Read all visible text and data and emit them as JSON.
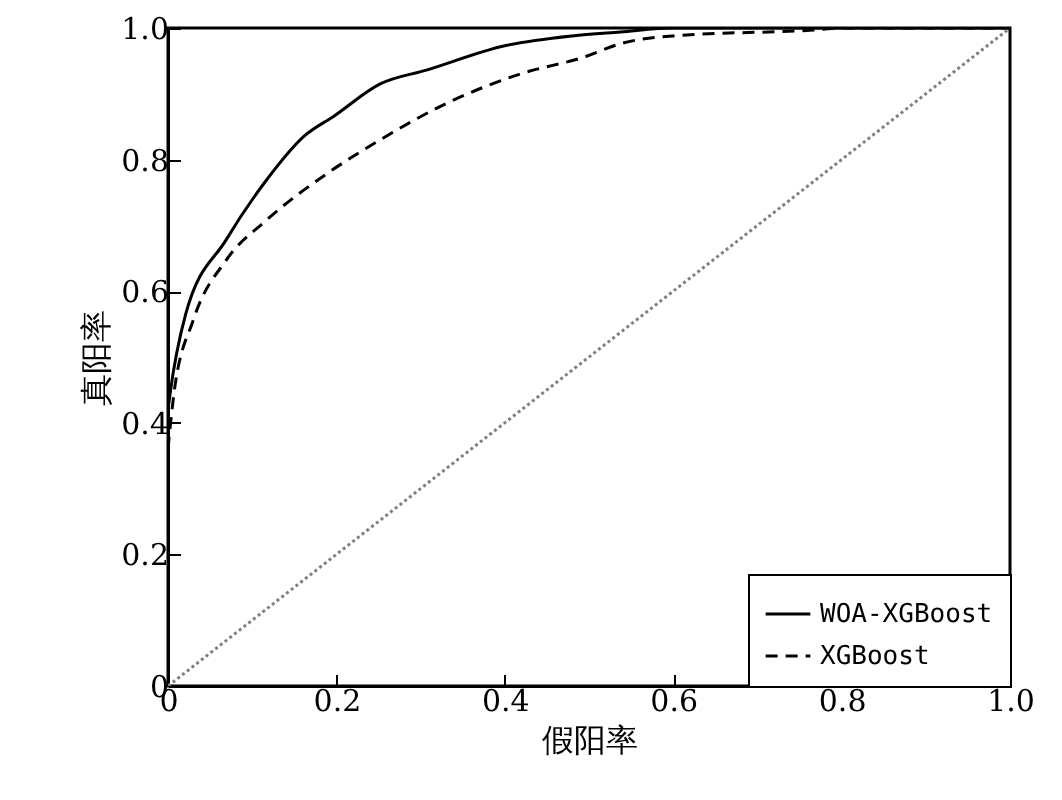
{
  "chart_data": {
    "type": "line",
    "xlabel": "假阳率",
    "ylabel": "真阳率",
    "xlim": [
      0,
      1
    ],
    "ylim": [
      0,
      1
    ],
    "xticks": [
      0,
      0.2,
      0.4,
      0.6,
      0.8,
      {
        "value": 1,
        "label": "1.0"
      }
    ],
    "yticks": [
      0,
      0.2,
      0.4,
      0.6,
      0.8,
      {
        "value": 1,
        "label": "1.0"
      }
    ],
    "legend": "bottom right",
    "series": [
      {
        "name": "WOA-XGBoost",
        "color": "#000000",
        "line_style": "solid",
        "x": [
          0,
          0.002,
          0.021,
          0.069,
          0.117,
          0.162,
          0.197,
          0.252,
          0.307,
          0.4,
          0.48,
          0.537,
          0.6,
          1
        ],
        "values": [
          0.42,
          0.44,
          0.565,
          0.678,
          0.769,
          0.836,
          0.866,
          0.915,
          0.936,
          0.973,
          0.988,
          0.994,
          1,
          1
        ]
      },
      {
        "name": "XGBoost",
        "color": "#000000",
        "line_style": "dashed",
        "x": [
          0,
          0.007,
          0.03,
          0.069,
          0.117,
          0.188,
          0.252,
          0.33,
          0.418,
          0.497,
          0.537,
          0.6,
          0.767,
          0.8,
          1
        ],
        "values": [
          0.36,
          0.444,
          0.556,
          0.647,
          0.708,
          0.778,
          0.83,
          0.885,
          0.93,
          0.957,
          0.976,
          0.988,
          0.997,
          1,
          1
        ]
      },
      {
        "color": "#808080",
        "line_style": "dotted",
        "x": [
          0,
          1
        ],
        "values": [
          0,
          1
        ]
      }
    ]
  }
}
